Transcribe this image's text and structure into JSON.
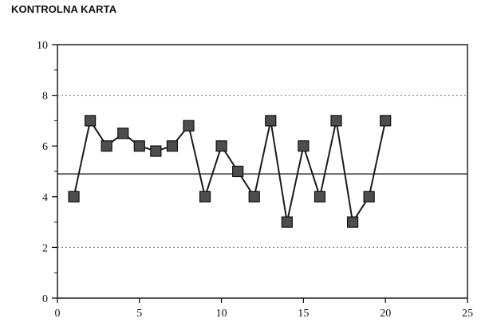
{
  "title": "KONTROLNA KARTA",
  "chart_data": {
    "type": "line",
    "title": "KONTROLNA KARTA",
    "xlabel": "",
    "ylabel": "",
    "xlim": [
      0,
      25
    ],
    "ylim": [
      0,
      10
    ],
    "x_ticks": [
      0,
      5,
      10,
      15,
      20,
      25
    ],
    "y_ticks": [
      0,
      2,
      4,
      6,
      8,
      10
    ],
    "grid": false,
    "center_line": 4.9,
    "upper_control_limit": 8,
    "lower_control_limit": 2,
    "series": [
      {
        "x": [
          1,
          2,
          3,
          4,
          5,
          6,
          7,
          8,
          9,
          10,
          11,
          12,
          13,
          14,
          15,
          16,
          17,
          18,
          19,
          20
        ],
        "y": [
          4,
          7,
          6,
          6.5,
          6,
          5.8,
          6,
          6.8,
          4,
          6,
          5,
          4,
          7,
          3,
          6,
          4,
          7,
          3,
          4,
          7
        ]
      }
    ],
    "colors": {
      "line": "#1a1a1a",
      "marker_fill": "#4d4d4d",
      "marker_edge": "#111111",
      "limit_line": "#777777",
      "frame": "#111111"
    }
  }
}
